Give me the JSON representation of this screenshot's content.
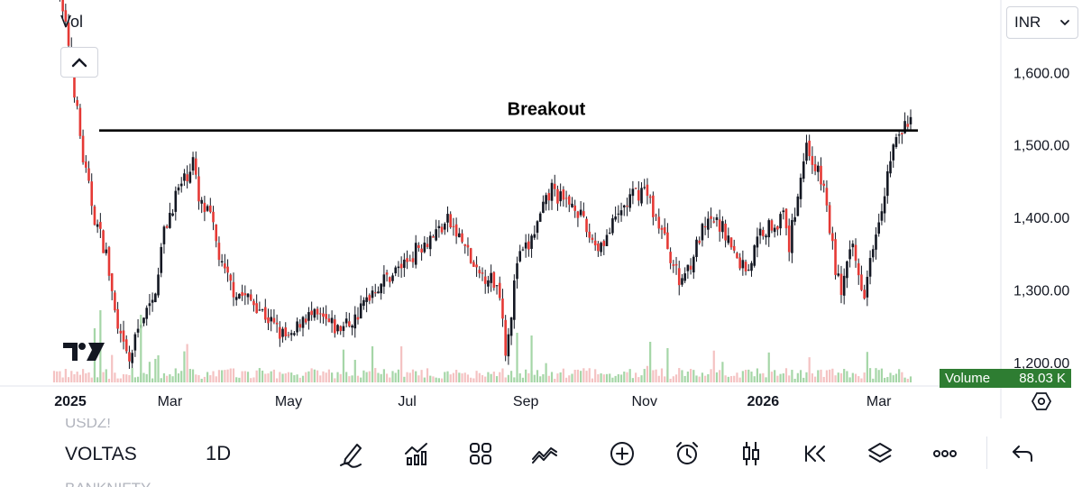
{
  "chart_data": {
    "type": "candlestick",
    "symbol": "VOLTAS",
    "interval": "1D",
    "currency": "INR",
    "annotation": {
      "text": "Breakout",
      "level": 1520
    },
    "y_axis": {
      "ticks": [
        1600,
        1500,
        1400,
        1300,
        1200
      ],
      "tick_labels": [
        "1,600.00",
        "1,500.00",
        "1,400.00",
        "1,300.00",
        "1,200.00"
      ],
      "ylim": [
        1160,
        1700
      ]
    },
    "x_axis": {
      "ticks": [
        {
          "label": "2025",
          "bold": true,
          "day": 0
        },
        {
          "label": "Mar",
          "bold": false,
          "day": 40
        },
        {
          "label": "May",
          "bold": false,
          "day": 81
        },
        {
          "label": "Jul",
          "bold": false,
          "day": 122
        },
        {
          "label": "Sep",
          "bold": false,
          "day": 163
        },
        {
          "label": "Nov",
          "bold": false,
          "day": 204
        },
        {
          "label": "2026",
          "bold": true,
          "day": 245
        },
        {
          "label": "Mar",
          "bold": false,
          "day": 285
        }
      ]
    },
    "price_path": [
      [
        0,
        1740
      ],
      [
        5,
        1640
      ],
      [
        10,
        1480
      ],
      [
        14,
        1400
      ],
      [
        18,
        1350
      ],
      [
        22,
        1240
      ],
      [
        26,
        1200
      ],
      [
        30,
        1260
      ],
      [
        34,
        1280
      ],
      [
        38,
        1380
      ],
      [
        42,
        1430
      ],
      [
        46,
        1460
      ],
      [
        48,
        1480
      ],
      [
        50,
        1420
      ],
      [
        54,
        1400
      ],
      [
        58,
        1330
      ],
      [
        62,
        1300
      ],
      [
        66,
        1290
      ],
      [
        70,
        1280
      ],
      [
        74,
        1260
      ],
      [
        78,
        1240
      ],
      [
        82,
        1230
      ],
      [
        86,
        1265
      ],
      [
        92,
        1260
      ],
      [
        98,
        1245
      ],
      [
        104,
        1260
      ],
      [
        110,
        1300
      ],
      [
        116,
        1320
      ],
      [
        122,
        1340
      ],
      [
        126,
        1360
      ],
      [
        132,
        1380
      ],
      [
        136,
        1395
      ],
      [
        142,
        1360
      ],
      [
        146,
        1320
      ],
      [
        150,
        1320
      ],
      [
        154,
        1300
      ],
      [
        156,
        1220
      ],
      [
        158,
        1270
      ],
      [
        160,
        1340
      ],
      [
        164,
        1360
      ],
      [
        168,
        1400
      ],
      [
        172,
        1440
      ],
      [
        176,
        1420
      ],
      [
        180,
        1420
      ],
      [
        184,
        1380
      ],
      [
        188,
        1360
      ],
      [
        192,
        1380
      ],
      [
        196,
        1410
      ],
      [
        200,
        1430
      ],
      [
        204,
        1440
      ],
      [
        208,
        1400
      ],
      [
        212,
        1360
      ],
      [
        216,
        1310
      ],
      [
        220,
        1340
      ],
      [
        224,
        1380
      ],
      [
        228,
        1395
      ],
      [
        232,
        1380
      ],
      [
        236,
        1340
      ],
      [
        240,
        1330
      ],
      [
        244,
        1380
      ],
      [
        248,
        1390
      ],
      [
        252,
        1400
      ],
      [
        254,
        1360
      ],
      [
        258,
        1460
      ],
      [
        260,
        1500
      ],
      [
        262,
        1480
      ],
      [
        266,
        1440
      ],
      [
        270,
        1330
      ],
      [
        272,
        1300
      ],
      [
        276,
        1360
      ],
      [
        278,
        1320
      ],
      [
        280,
        1300
      ],
      [
        282,
        1350
      ],
      [
        286,
        1420
      ],
      [
        288,
        1460
      ],
      [
        290,
        1500
      ],
      [
        292,
        1510
      ],
      [
        294,
        1525
      ],
      [
        296,
        1535
      ]
    ],
    "volume": {
      "label": "Volume",
      "last_value": "88.03 K"
    }
  },
  "ui": {
    "vol_label": "Vol",
    "currency_label": "INR",
    "symbol_prev": "USDZ!",
    "symbol_current": "VOLTAS",
    "symbol_next": "BANKNIFTY",
    "interval_label": "1D",
    "icons": [
      "collapse-up-icon",
      "chevron-down-icon",
      "drawing-pen-icon",
      "indicators-icon",
      "layouts-grid-icon",
      "trend-line-icon",
      "add-plus-icon",
      "alarm-clock-icon",
      "candles-icon",
      "replay-icon",
      "layers-icon",
      "more-dots-icon",
      "undo-icon",
      "settings-hex-icon"
    ],
    "colors": {
      "up": "#26a69a",
      "down": "#e53935",
      "candle": "#131722",
      "volume_up": "#a5d6a7",
      "volume_down": "#f4c2c2",
      "badge": "#2e7d32"
    }
  }
}
